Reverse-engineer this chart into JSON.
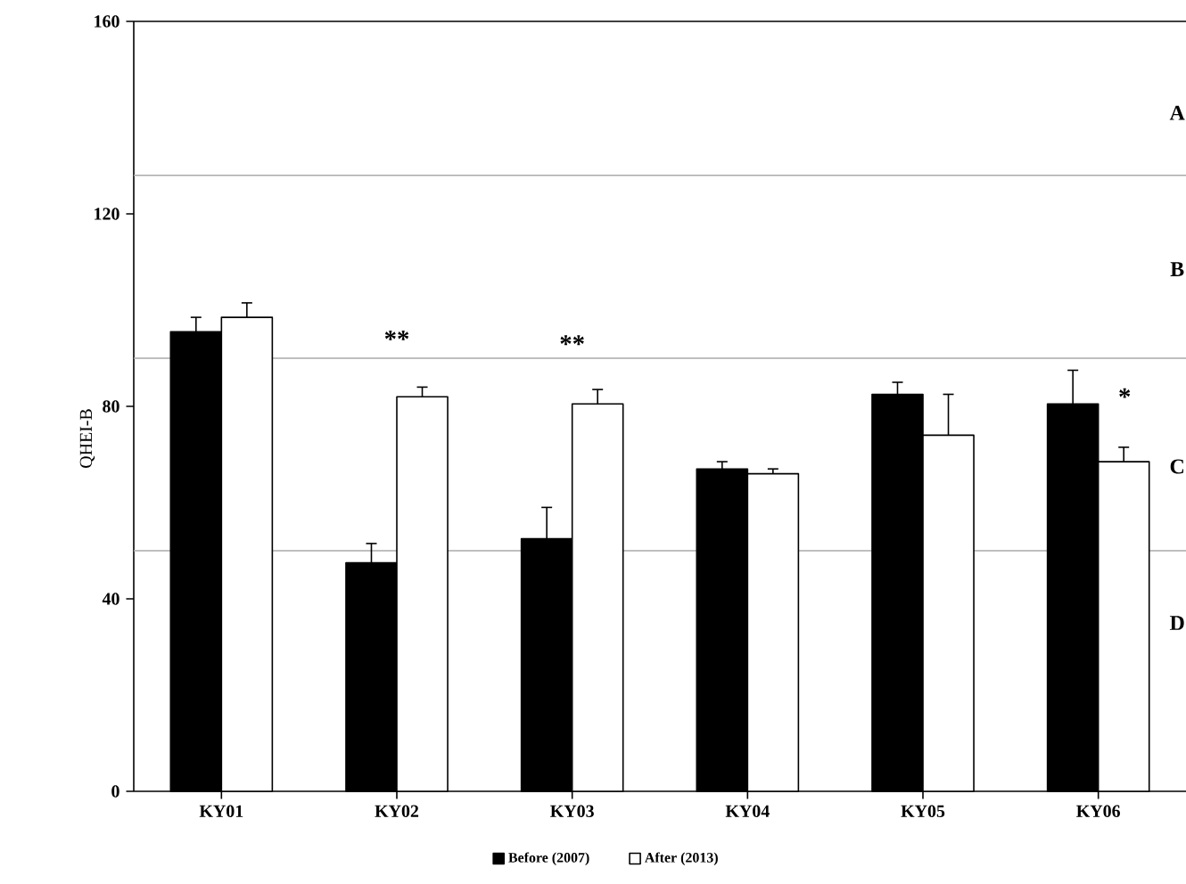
{
  "chart_data": {
    "type": "bar",
    "ylabel": "QHEI-B",
    "categories": [
      "KY01",
      "KY02",
      "KY03",
      "KY04",
      "KY05",
      "KY06"
    ],
    "series": [
      {
        "name": "Before (2007)",
        "color": "#000000",
        "values": [
          95.5,
          47.5,
          52.5,
          67,
          82.5,
          80.5
        ],
        "errors": [
          [
            95.5,
            98.5
          ],
          [
            47.5,
            51.5
          ],
          [
            52.5,
            59
          ],
          [
            67,
            68.5
          ],
          [
            82.5,
            85
          ],
          [
            80.5,
            87.5
          ]
        ]
      },
      {
        "name": "After (2013)",
        "color": "#ffffff",
        "values": [
          98.5,
          82,
          80.5,
          66,
          74,
          68.5
        ],
        "errors": [
          [
            98.5,
            101.5
          ],
          [
            82,
            84
          ],
          [
            80.5,
            83.5
          ],
          [
            66,
            67
          ],
          [
            74,
            82.5
          ],
          [
            68.5,
            71.5
          ]
        ]
      }
    ],
    "ylim": [
      0,
      160
    ],
    "yticks": [
      0,
      40,
      80,
      120,
      160
    ],
    "grid": false,
    "legend": "bottom",
    "ref_lines": [
      {
        "axis": "y",
        "value": 128,
        "color": "#aaaaaa"
      },
      {
        "axis": "y",
        "value": 90,
        "color": "#aaaaaa"
      },
      {
        "axis": "y",
        "value": 50,
        "color": "#aaaaaa"
      }
    ],
    "annotations": [
      "**",
      "**",
      "*",
      "A",
      "B",
      "C",
      "D"
    ]
  }
}
